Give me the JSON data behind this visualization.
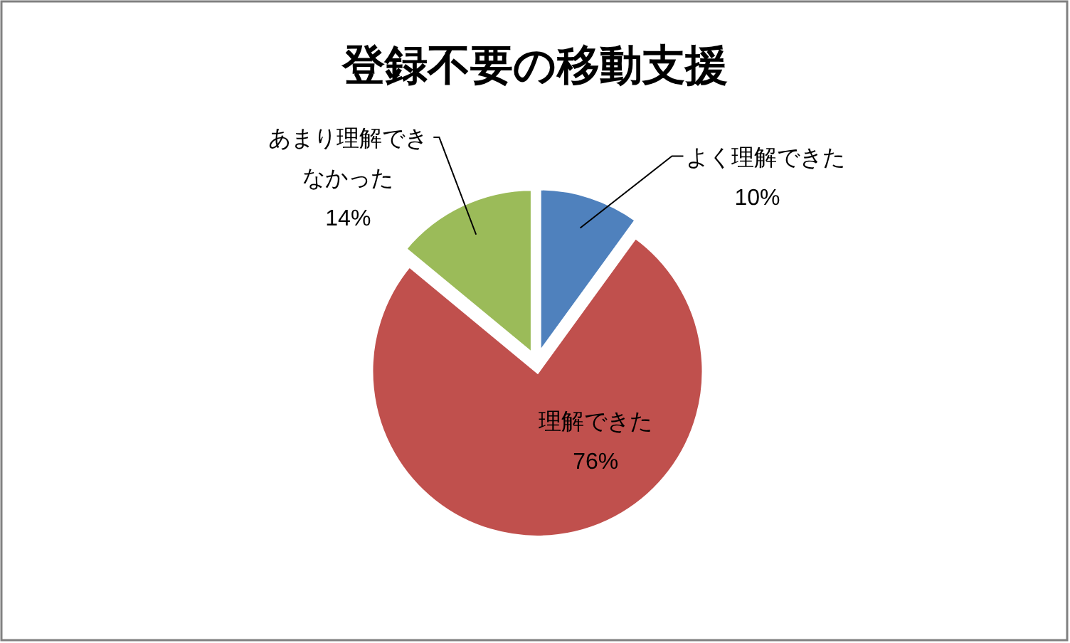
{
  "chart_data": {
    "type": "pie",
    "title": "登録不要の移動支援",
    "categories": [
      "よく理解できた",
      "理解できた",
      "あまり理解できなかった"
    ],
    "values": [
      10,
      76,
      14
    ],
    "value_labels": [
      "10%",
      "76%",
      "14%"
    ],
    "colors": [
      "#4f81bd",
      "#c0504d",
      "#9bbb59"
    ]
  }
}
